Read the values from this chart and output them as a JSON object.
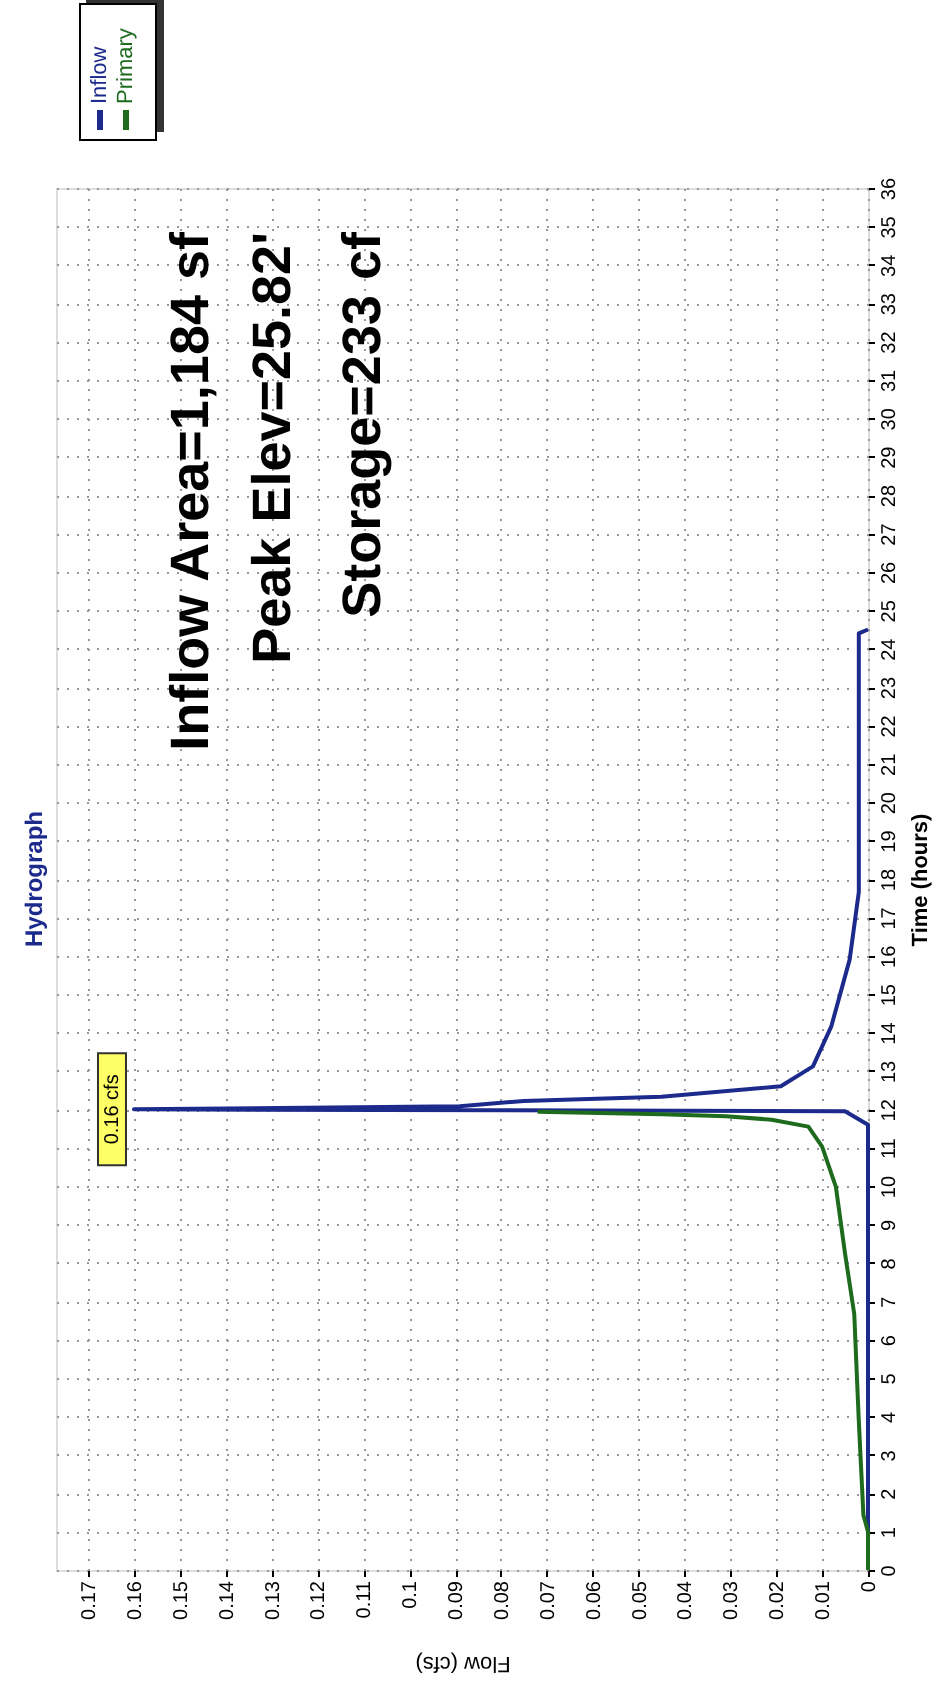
{
  "chart_data": {
    "type": "line",
    "title": "Hydrograph",
    "xlabel": "Flow (cfs)",
    "ylabel": "Time (hours)",
    "series": [
      {
        "name": "Inflow",
        "color": "#1c2a8c",
        "x": [
          0,
          0,
          0.005,
          0.16,
          0.089,
          0.075,
          0.045,
          0.019,
          0.012,
          0.008,
          0.004,
          0.002,
          0.002,
          0.002,
          0
        ],
        "values": [
          0,
          11.6,
          11.95,
          12.0,
          12.08,
          12.22,
          12.33,
          12.6,
          13.12,
          14.16,
          15.9,
          17.66,
          21.15,
          24.4,
          24.5
        ]
      },
      {
        "name": "Primary",
        "color": "#1e6b1e",
        "x": [
          0,
          0,
          0.001,
          0.002,
          0.003,
          0.005,
          0.007,
          0.01,
          0.013,
          0.021,
          0.031,
          0.045,
          0.072
        ],
        "values": [
          0,
          1,
          1.43,
          3.87,
          6.67,
          8.24,
          9.98,
          11.03,
          11.55,
          11.73,
          11.82,
          11.87,
          11.94
        ]
      }
    ],
    "xlim": [
      0.177,
      0
    ],
    "xticks": [
      0,
      0.01,
      0.02,
      0.03,
      0.04,
      0.05,
      0.06,
      0.07,
      0.08,
      0.09,
      0.1,
      0.11,
      0.12,
      0.13,
      0.14,
      0.15,
      0.16,
      0.17
    ],
    "ylim": [
      0,
      36
    ],
    "yticks": [
      0,
      1,
      2,
      3,
      4,
      5,
      6,
      7,
      8,
      9,
      10,
      11,
      12,
      13,
      14,
      15,
      16,
      17,
      18,
      19,
      20,
      21,
      22,
      23,
      24,
      25,
      26,
      27,
      28,
      29,
      30,
      31,
      32,
      33,
      34,
      35,
      36
    ],
    "annotations": [
      {
        "text": "0.16 cfs",
        "x": 0.16,
        "y": 12
      },
      "Inflow Area=1,184 sf",
      "Peak Elev=25.82'",
      "Storage=233 cf"
    ],
    "grid": true,
    "legend": "top left",
    "line_style": "solid",
    "marker": "none"
  }
}
